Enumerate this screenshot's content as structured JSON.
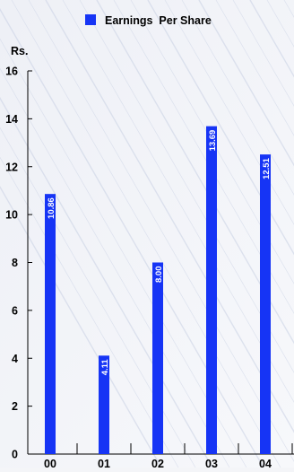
{
  "chart_data": {
    "type": "bar",
    "categories": [
      "00",
      "01",
      "02",
      "03",
      "04"
    ],
    "series": [
      {
        "name": "Earnings  Per Share",
        "values": [
          10.86,
          4.11,
          8.0,
          13.69,
          12.51
        ],
        "value_labels": [
          "10.86",
          "4.11",
          "8.00",
          "13.69",
          "12.51"
        ]
      }
    ],
    "ylabel": "Rs.",
    "ylim": [
      0,
      16
    ],
    "yticks": [
      0,
      2,
      4,
      6,
      8,
      10,
      12,
      14,
      16
    ],
    "legend": "top-center",
    "grid": false,
    "colors": {
      "bar": "#1634f5",
      "axis": "#000000",
      "value_label": "#ffffff",
      "background": "#f4f5f8",
      "streak": "#c9d1e4"
    }
  }
}
